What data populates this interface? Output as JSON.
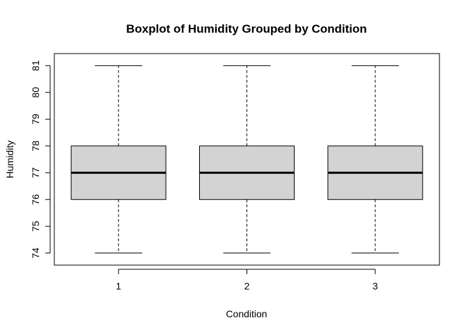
{
  "chart_data": {
    "type": "boxplot",
    "title": "Boxplot of Humidity Grouped by Condition",
    "xlabel": "Condition",
    "ylabel": "Humidity",
    "categories": [
      "1",
      "2",
      "3"
    ],
    "ylim": [
      73.55,
      81.45
    ],
    "yticks": [
      74,
      75,
      76,
      77,
      78,
      79,
      80,
      81
    ],
    "boxes": [
      {
        "category": "1",
        "min": 74,
        "q1": 76,
        "median": 77,
        "q3": 78,
        "max": 81
      },
      {
        "category": "2",
        "min": 74,
        "q1": 76,
        "median": 77,
        "q3": 78,
        "max": 81
      },
      {
        "category": "3",
        "min": 74,
        "q1": 76,
        "median": 77,
        "q3": 78,
        "max": 81
      }
    ],
    "box_fill": "#d3d3d3",
    "line_color": "#000000",
    "grid": false,
    "legend": "none"
  }
}
